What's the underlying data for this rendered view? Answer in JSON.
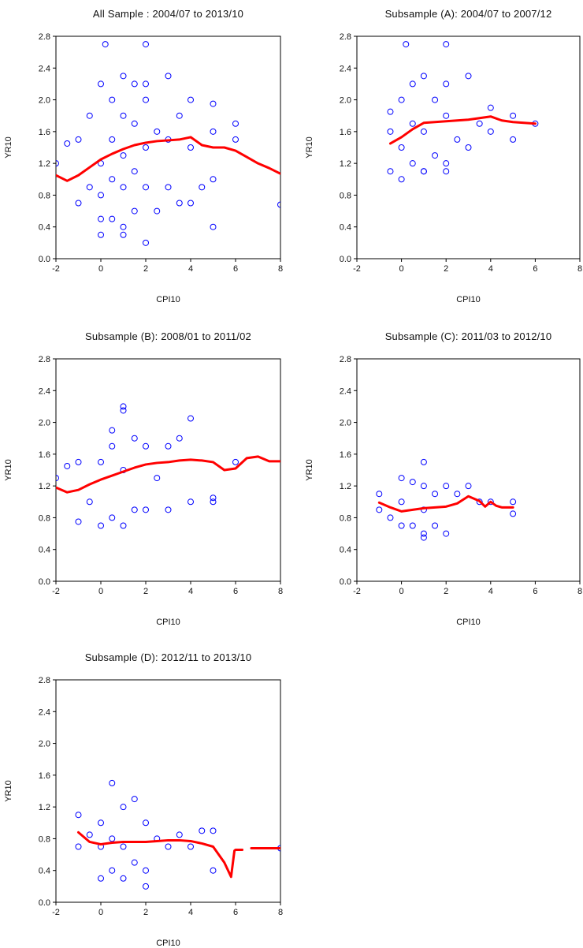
{
  "chart_data": [
    {
      "type": "scatter",
      "title": "All Sample : 2004/07 to 2013/10",
      "xlabel": "CPI10",
      "ylabel": "YR10",
      "xlim": [
        -2,
        8
      ],
      "ylim": [
        0.0,
        2.8
      ],
      "xticks": [
        "-2",
        "0",
        "2",
        "4",
        "6",
        "8"
      ],
      "yticks": [
        "0.0",
        "0.4",
        "0.8",
        "1.2",
        "1.6",
        "2.0",
        "2.4",
        "2.8"
      ],
      "points": {
        "x": [
          -1.0,
          -1.0,
          -0.5,
          -0.5,
          0.0,
          0.0,
          0.0,
          0.0,
          0.5,
          0.5,
          0.5,
          0.5,
          1.0,
          1.0,
          1.0,
          1.0,
          1.0,
          1.5,
          1.5,
          1.5,
          1.5,
          2.0,
          2.0,
          2.0,
          2.0,
          2.5,
          2.5,
          3.0,
          3.0,
          3.0,
          3.5,
          3.5,
          4.0,
          4.0,
          4.0,
          4.5,
          5.0,
          5.0,
          5.0,
          5.0,
          6.0,
          6.0,
          8.0,
          0.2,
          2.0,
          -2.0,
          -1.5,
          0.0,
          1.0,
          2.0
        ],
        "y": [
          0.7,
          1.5,
          0.9,
          1.8,
          0.3,
          0.8,
          1.2,
          2.2,
          0.5,
          1.0,
          1.5,
          2.0,
          0.4,
          0.9,
          1.3,
          1.8,
          2.3,
          0.6,
          1.1,
          1.7,
          2.2,
          0.2,
          0.9,
          1.4,
          2.0,
          0.6,
          1.6,
          0.9,
          1.5,
          2.3,
          0.7,
          1.8,
          0.7,
          1.4,
          2.0,
          0.9,
          0.4,
          1.0,
          1.6,
          1.95,
          1.5,
          1.7,
          0.68,
          2.7,
          2.7,
          1.2,
          1.45,
          0.5,
          0.3,
          2.2
        ]
      },
      "series": [
        {
          "x": [
            -2.0,
            -1.5,
            -1.0,
            -0.5,
            0.0,
            0.5,
            1.0,
            1.5,
            2.0,
            2.5,
            3.0,
            3.5,
            4.0,
            4.5,
            5.0,
            5.5,
            6.0,
            6.5,
            7.0,
            7.5,
            8.0
          ],
          "y": [
            1.05,
            0.98,
            1.05,
            1.15,
            1.25,
            1.32,
            1.38,
            1.43,
            1.46,
            1.48,
            1.49,
            1.5,
            1.53,
            1.43,
            1.4,
            1.4,
            1.36,
            1.28,
            1.2,
            1.14,
            1.07
          ]
        }
      ]
    },
    {
      "type": "scatter",
      "title": "Subsample (A): 2004/07 to 2007/12",
      "xlabel": "CPI10",
      "ylabel": "YR10",
      "xlim": [
        -2,
        8
      ],
      "ylim": [
        0.0,
        2.8
      ],
      "xticks": [
        "-2",
        "0",
        "2",
        "4",
        "6",
        "8"
      ],
      "yticks": [
        "0.0",
        "0.4",
        "0.8",
        "1.2",
        "1.6",
        "2.0",
        "2.4",
        "2.8"
      ],
      "points": {
        "x": [
          -0.5,
          -0.5,
          0.0,
          0.0,
          0.0,
          0.5,
          0.5,
          0.5,
          1.0,
          1.0,
          1.0,
          1.5,
          1.5,
          2.0,
          2.0,
          2.0,
          2.5,
          3.0,
          3.0,
          3.5,
          4.0,
          4.0,
          5.0,
          5.0,
          6.0,
          0.2,
          2.0,
          -0.5,
          1.0,
          2.0
        ],
        "y": [
          1.1,
          1.6,
          1.0,
          1.4,
          2.0,
          1.2,
          1.7,
          2.2,
          1.1,
          1.6,
          2.3,
          1.3,
          2.0,
          1.2,
          1.8,
          2.2,
          1.5,
          1.4,
          2.3,
          1.7,
          1.6,
          1.9,
          1.5,
          1.8,
          1.7,
          2.7,
          2.7,
          1.85,
          1.1,
          1.1
        ]
      },
      "series": [
        {
          "x": [
            -0.5,
            0.0,
            0.5,
            1.0,
            1.5,
            2.0,
            2.5,
            3.0,
            3.5,
            4.0,
            4.5,
            5.0,
            5.5,
            6.0
          ],
          "y": [
            1.45,
            1.53,
            1.63,
            1.71,
            1.72,
            1.73,
            1.74,
            1.75,
            1.77,
            1.79,
            1.74,
            1.72,
            1.71,
            1.7
          ]
        }
      ]
    },
    {
      "type": "scatter",
      "title": "Subsample (B): 2008/01 to 2011/02",
      "xlabel": "CPI10",
      "ylabel": "YR10",
      "xlim": [
        -2,
        8
      ],
      "ylim": [
        0.0,
        2.8
      ],
      "xticks": [
        "-2",
        "0",
        "2",
        "4",
        "6",
        "8"
      ],
      "yticks": [
        "0.0",
        "0.4",
        "0.8",
        "1.2",
        "1.6",
        "2.0",
        "2.4",
        "2.8"
      ],
      "points": {
        "x": [
          -2.0,
          -1.5,
          -1.0,
          -1.0,
          -0.5,
          0.0,
          0.0,
          0.5,
          0.5,
          1.0,
          1.0,
          1.0,
          1.5,
          1.5,
          2.0,
          2.0,
          2.5,
          3.0,
          3.0,
          3.5,
          4.0,
          4.0,
          5.0,
          5.0,
          6.0,
          1.0,
          0.5
        ],
        "y": [
          1.3,
          1.45,
          0.75,
          1.5,
          1.0,
          0.7,
          1.5,
          0.8,
          1.7,
          0.7,
          1.4,
          2.2,
          0.9,
          1.8,
          0.9,
          1.7,
          1.3,
          0.9,
          1.7,
          1.8,
          1.0,
          2.05,
          1.0,
          1.05,
          1.5,
          2.15,
          1.9
        ]
      },
      "series": [
        {
          "x": [
            -2.0,
            -1.5,
            -1.0,
            -0.5,
            0.0,
            0.5,
            1.0,
            1.5,
            2.0,
            2.5,
            3.0,
            3.5,
            4.0,
            4.5,
            5.0,
            5.5,
            6.0,
            6.5,
            7.0,
            7.5,
            8.0
          ],
          "y": [
            1.18,
            1.12,
            1.15,
            1.22,
            1.28,
            1.33,
            1.38,
            1.43,
            1.47,
            1.49,
            1.5,
            1.52,
            1.53,
            1.52,
            1.5,
            1.4,
            1.42,
            1.55,
            1.57,
            1.51,
            1.51
          ]
        }
      ]
    },
    {
      "type": "scatter",
      "title": "Subsample (C): 2011/03 to 2012/10",
      "xlabel": "CPI10",
      "ylabel": "YR10",
      "xlim": [
        -2,
        8
      ],
      "ylim": [
        0.0,
        2.8
      ],
      "xticks": [
        "-2",
        "0",
        "2",
        "4",
        "6",
        "8"
      ],
      "yticks": [
        "0.0",
        "0.4",
        "0.8",
        "1.2",
        "1.6",
        "2.0",
        "2.4",
        "2.8"
      ],
      "points": {
        "x": [
          -1.0,
          -1.0,
          -0.5,
          0.0,
          0.0,
          0.0,
          0.5,
          0.5,
          1.0,
          1.0,
          1.0,
          1.0,
          1.5,
          1.5,
          2.0,
          2.0,
          2.5,
          3.0,
          3.5,
          4.0,
          5.0,
          5.0,
          1.0
        ],
        "y": [
          0.9,
          1.1,
          0.8,
          0.7,
          1.0,
          1.3,
          0.7,
          1.25,
          0.6,
          0.9,
          1.2,
          1.5,
          0.7,
          1.1,
          0.6,
          1.2,
          1.1,
          1.2,
          1.0,
          1.0,
          0.85,
          1.0,
          0.55
        ]
      },
      "series": [
        {
          "x": [
            -1.0,
            -0.5,
            0.0,
            0.5,
            1.0,
            1.5,
            2.0,
            2.5,
            3.0,
            3.5,
            3.75,
            4.0,
            4.25,
            4.5,
            5.0
          ],
          "y": [
            0.99,
            0.93,
            0.88,
            0.9,
            0.92,
            0.93,
            0.94,
            0.98,
            1.07,
            1.01,
            0.94,
            1.0,
            0.95,
            0.93,
            0.93
          ]
        }
      ]
    },
    {
      "type": "scatter",
      "title": "Subsample (D): 2012/11 to 2013/10",
      "xlabel": "CPI10",
      "ylabel": "YR10",
      "xlim": [
        -2,
        8
      ],
      "ylim": [
        0.0,
        2.8
      ],
      "xticks": [
        "-2",
        "0",
        "2",
        "4",
        "6",
        "8"
      ],
      "yticks": [
        "0.0",
        "0.4",
        "0.8",
        "1.2",
        "1.6",
        "2.0",
        "2.4",
        "2.8"
      ],
      "points": {
        "x": [
          -1.0,
          -1.0,
          -0.5,
          0.0,
          0.0,
          0.0,
          0.5,
          0.5,
          0.5,
          1.0,
          1.0,
          1.0,
          1.5,
          1.5,
          2.0,
          2.0,
          2.5,
          3.0,
          3.5,
          4.0,
          4.5,
          5.0,
          5.0,
          8.0,
          2.0
        ],
        "y": [
          0.7,
          1.1,
          0.85,
          0.3,
          0.7,
          1.0,
          0.4,
          0.8,
          1.5,
          0.3,
          0.7,
          1.2,
          0.5,
          1.3,
          0.4,
          1.0,
          0.8,
          0.7,
          0.85,
          0.7,
          0.9,
          0.4,
          0.9,
          0.68,
          0.2
        ]
      },
      "series": [
        {
          "x": [
            -1.0,
            -0.5,
            0.0,
            0.5,
            1.0,
            1.5,
            2.0,
            2.5,
            3.0,
            3.5,
            4.0,
            4.5,
            5.0,
            5.5,
            5.8,
            5.95,
            6.0,
            6.3
          ],
          "y": [
            0.88,
            0.76,
            0.73,
            0.75,
            0.76,
            0.76,
            0.76,
            0.77,
            0.78,
            0.78,
            0.77,
            0.74,
            0.7,
            0.5,
            0.32,
            0.65,
            0.66,
            0.66
          ]
        },
        {
          "x": [
            6.7,
            7.0,
            7.5,
            8.0
          ],
          "y": [
            0.68,
            0.68,
            0.68,
            0.68
          ]
        }
      ]
    }
  ]
}
